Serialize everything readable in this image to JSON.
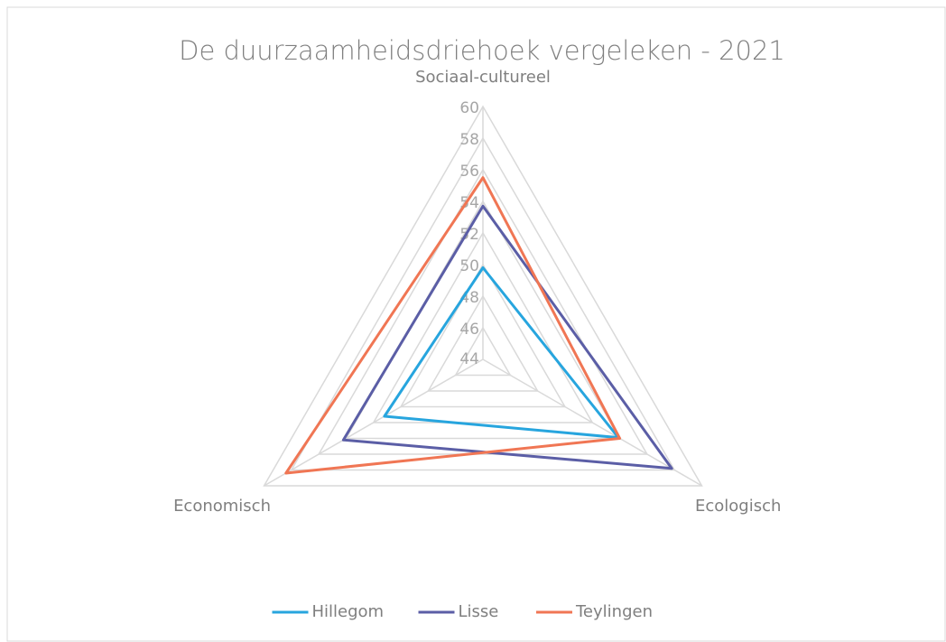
{
  "chart_data": {
    "type": "radar",
    "title": "De duurzaamheidsdriehoek vergeleken - 2021",
    "categories": [
      "Sociaal-cultureel",
      "Ecologisch",
      "Economisch"
    ],
    "series": [
      {
        "name": "Hillegom",
        "color": "#27a5de",
        "values": [
          49.8,
          53.9,
          51.2
        ]
      },
      {
        "name": "Lisse",
        "color": "#5b5ea6",
        "values": [
          53.7,
          57.8,
          54.2
        ]
      },
      {
        "name": "Teylingen",
        "color": "#f07654",
        "values": [
          55.5,
          54,
          58.4
        ]
      }
    ],
    "ylim": [
      44,
      60
    ],
    "yticks": [
      44,
      46,
      48,
      50,
      52,
      54,
      56,
      58,
      60
    ],
    "grid": true,
    "legend": "bottom"
  }
}
